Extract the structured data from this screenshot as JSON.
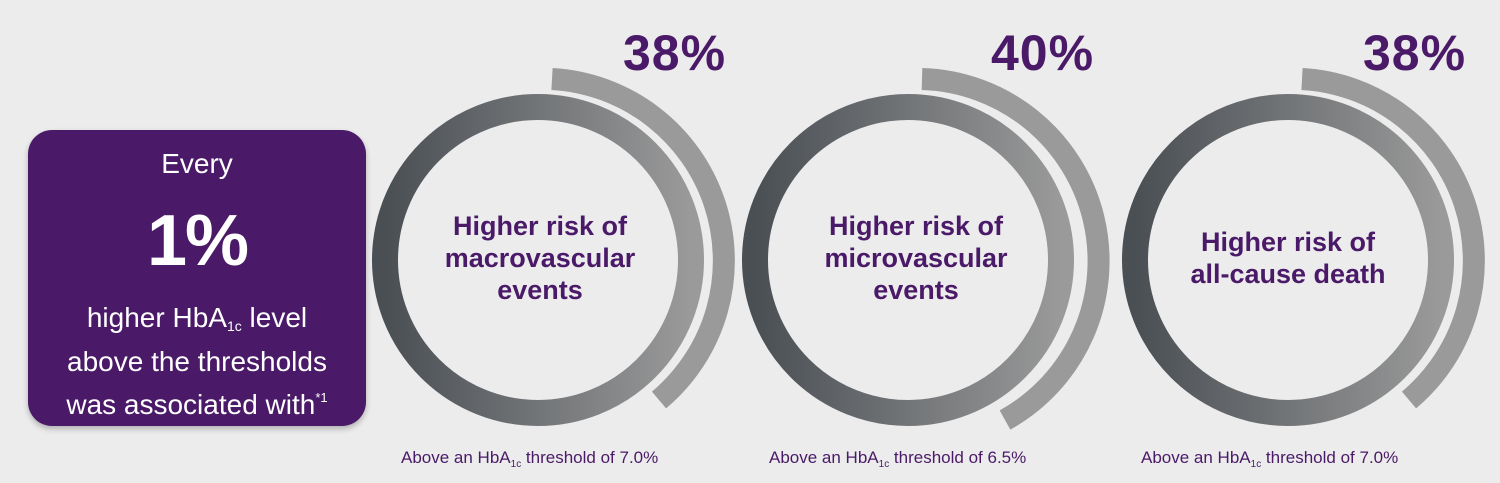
{
  "intro": {
    "top_text": "Every",
    "big_value": "1%",
    "line1_pre": "higher HbA",
    "line1_sub": "1c",
    "line1_post": " level",
    "line2": "above the thresholds",
    "line3_pre": "was associated with",
    "line3_sup": "*1"
  },
  "colors": {
    "purple": "#4a1a68",
    "ring_dark": "#4a4f54",
    "ring_light": "#9a9a9a",
    "background": "#ececec"
  },
  "stats": [
    {
      "value": "38%",
      "label_lines": [
        "Higher risk of",
        "macrovascular",
        "events"
      ],
      "caption_pre": "Above an HbA",
      "caption_sub": "1c",
      "caption_post": " threshold of 7.0%"
    },
    {
      "value": "40%",
      "label_lines": [
        "Higher risk of",
        "microvascular",
        "events"
      ],
      "caption_pre": "Above an HbA",
      "caption_sub": "1c",
      "caption_post": " threshold of 6.5%"
    },
    {
      "value": "38%",
      "label_lines": [
        "Higher risk of",
        "all-cause death"
      ],
      "caption_pre": "Above an HbA",
      "caption_sub": "1c",
      "caption_post": " threshold of 7.0%"
    }
  ]
}
